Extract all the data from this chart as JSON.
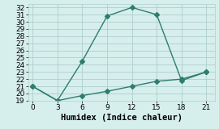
{
  "line1_x": [
    0,
    3,
    6,
    9,
    12,
    15,
    18,
    21
  ],
  "line1_y": [
    21,
    19,
    24.5,
    30.8,
    32,
    31,
    21.8,
    23
  ],
  "line2_x": [
    0,
    3,
    6,
    9,
    12,
    15,
    18,
    21
  ],
  "line2_y": [
    21,
    19,
    19.7,
    20.3,
    21.0,
    21.7,
    22.0,
    23
  ],
  "line_color": "#2e7d6e",
  "bg_color": "#d6eeec",
  "grid_color": "#aed0cc",
  "xlabel": "Humidex (Indice chaleur)",
  "xlim": [
    -0.5,
    22
  ],
  "ylim": [
    19,
    32.5
  ],
  "xticks": [
    0,
    3,
    6,
    9,
    12,
    15,
    18,
    21
  ],
  "yticks": [
    19,
    20,
    21,
    22,
    23,
    24,
    25,
    26,
    27,
    28,
    29,
    30,
    31,
    32
  ],
  "marker": "D",
  "markersize": 3,
  "linewidth": 1.0,
  "xlabel_fontsize": 7.5,
  "tick_fontsize": 6.5
}
